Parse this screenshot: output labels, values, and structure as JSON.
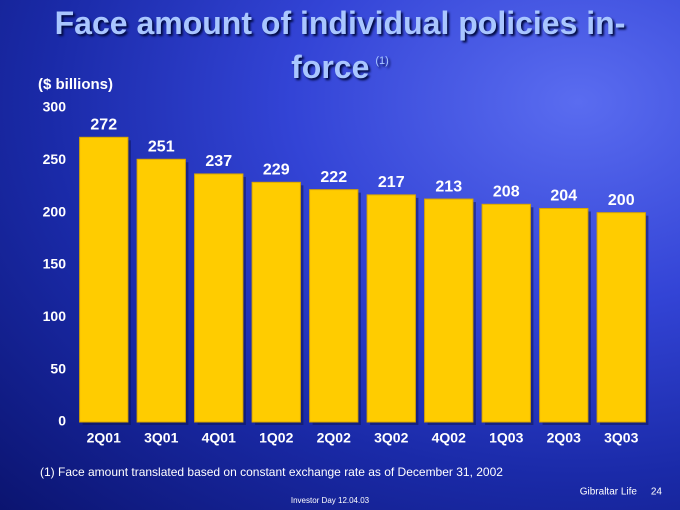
{
  "chart_data": {
    "type": "bar",
    "title": "Face amount of individual policies in-force",
    "title_note": "(1)",
    "y_label": "($ billions)",
    "categories": [
      "2Q01",
      "3Q01",
      "4Q01",
      "1Q02",
      "2Q02",
      "3Q02",
      "4Q02",
      "1Q03",
      "2Q03",
      "3Q03"
    ],
    "values": [
      272,
      251,
      237,
      229,
      222,
      217,
      213,
      208,
      204,
      200
    ],
    "color": "#ffcc00",
    "ylim": [
      0,
      300
    ],
    "yticks": [
      0,
      50,
      100,
      150,
      200,
      250,
      300
    ],
    "grid": false,
    "footnote": "(1) Face amount translated based on constant exchange rate as of December 31, 2002"
  },
  "footer": {
    "event": "Investor Day 12.04.03",
    "company": "Gibraltar Life",
    "page": "24"
  }
}
